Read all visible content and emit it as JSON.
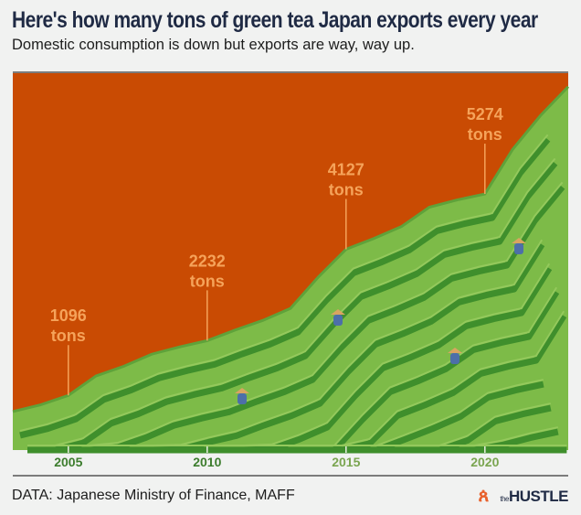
{
  "header": {
    "title": "Here's how many tons of green tea Japan exports every year",
    "subtitle": "Domestic consumption is down but exports are way, way up."
  },
  "footer": {
    "source": "DATA: Japanese Ministry of Finance, MAFF",
    "brand_the": "the",
    "brand_name": "HUSTLE",
    "hubspot_icon": "hubspot-sprocket-icon"
  },
  "colors": {
    "background": "#c94b03",
    "terrace_light": "#7dbb48",
    "terrace_dark": "#3f8f2c",
    "title": "#1f2a44",
    "tick_dark": "#3d7d2e",
    "tick_light": "#7aa550",
    "label": "#f5a35a"
  },
  "chart_data": {
    "type": "area",
    "title": "Here's how many tons of green tea Japan exports every year",
    "xlabel": "",
    "ylabel": "",
    "xlim": [
      2003,
      2023
    ],
    "ylim": [
      0,
      7800
    ],
    "grid": false,
    "x_ticks": [
      "2005",
      "2010",
      "2015",
      "2020"
    ],
    "annotations": [
      {
        "year": 2005,
        "value": 1096,
        "number": "1096",
        "unit": "tons"
      },
      {
        "year": 2010,
        "value": 2232,
        "number": "2232",
        "unit": "tons"
      },
      {
        "year": 2015,
        "value": 4127,
        "number": "4127",
        "unit": "tons"
      },
      {
        "year": 2020,
        "value": 5274,
        "number": "5274",
        "unit": "tons"
      }
    ],
    "series": [
      {
        "x": [
          2003,
          2004,
          2005,
          2006,
          2007,
          2008,
          2009,
          2010,
          2011,
          2012,
          2013,
          2014,
          2015,
          2016,
          2017,
          2018,
          2019,
          2020,
          2021,
          2022,
          2023
        ],
        "values": [
          760,
          900,
          1096,
          1500,
          1700,
          1950,
          2100,
          2232,
          2450,
          2650,
          2900,
          3550,
          4127,
          4350,
          4600,
          5000,
          5150,
          5274,
          6200,
          6900,
          7500
        ]
      }
    ]
  }
}
